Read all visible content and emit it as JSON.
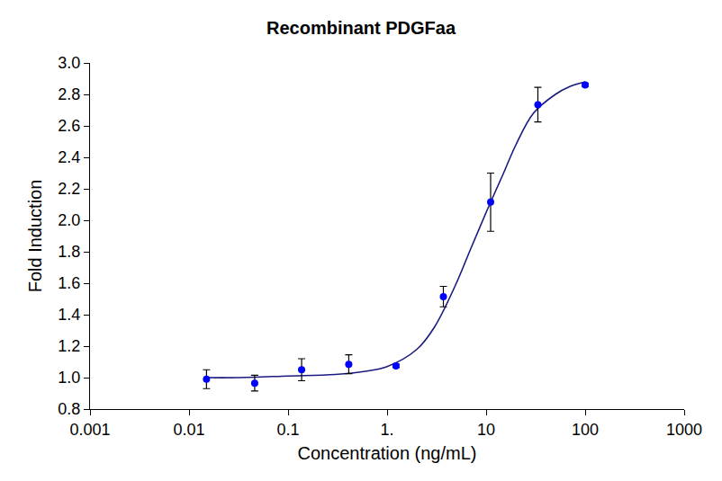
{
  "chart_data": {
    "type": "scatter",
    "title": "Recombinant PDGFaa",
    "x_label": "Concentration (ng/mL)",
    "y_label": "Fold Induction",
    "log": "x",
    "grid": false,
    "xlim": [
      0.001,
      1000
    ],
    "xticks": [
      0.001,
      0.01,
      0.1,
      {
        "value": 1,
        "label": "1."
      },
      10,
      100,
      1000
    ],
    "ylim": [
      0.8,
      3.0
    ],
    "yticks": [
      0.8,
      {
        "value": 1.0,
        "label": "1.0"
      },
      1.2,
      1.4,
      1.6,
      1.8,
      {
        "value": 2.0,
        "label": "2.0"
      },
      2.2,
      2.4,
      2.6,
      2.8,
      {
        "value": 3.0,
        "label": "3.0"
      }
    ],
    "series": [
      {
        "type": "line",
        "color": "#1a1a80",
        "line_style": "solid",
        "x": [
          0.015,
          0.03,
          0.1,
          0.3,
          0.6,
          1,
          2,
          3,
          5,
          7,
          10,
          15,
          20,
          30,
          50,
          70,
          100
        ],
        "values": [
          1.0,
          1.0,
          1.01,
          1.02,
          1.04,
          1.07,
          1.18,
          1.32,
          1.6,
          1.82,
          2.05,
          2.3,
          2.48,
          2.68,
          2.8,
          2.85,
          2.88
        ]
      },
      {
        "type": "scatter",
        "color": "#0000ff",
        "marker": "circle",
        "x": [
          0.015,
          0.046,
          0.137,
          0.41,
          1.23,
          3.7,
          11.1,
          33.3,
          100
        ],
        "values": [
          0.99,
          0.965,
          1.05,
          1.085,
          1.075,
          1.515,
          2.115,
          2.735,
          2.86
        ],
        "errors": [
          0.06,
          0.05,
          0.07,
          0.06,
          0.01,
          0.065,
          0.185,
          0.11,
          0.01
        ]
      }
    ]
  }
}
